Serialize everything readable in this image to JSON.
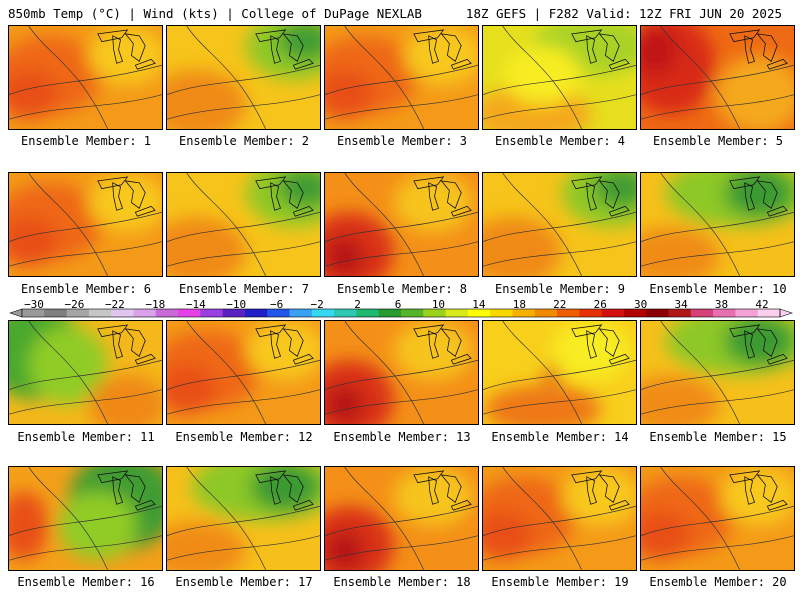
{
  "header": {
    "left": "850mb Temp (°C) | Wind (kts) | College of DuPage NEXLAB",
    "right": "18Z GEFS | F282 Valid: 12Z FRI JUN 20 2025"
  },
  "members": [
    {
      "caption": "Ensemble Member: 1",
      "theme": "warm"
    },
    {
      "caption": "Ensemble Member: 2",
      "theme": "mixed-green-ne"
    },
    {
      "caption": "Ensemble Member: 3",
      "theme": "warm"
    },
    {
      "caption": "Ensemble Member: 4",
      "theme": "yellow-green"
    },
    {
      "caption": "Ensemble Member: 5",
      "theme": "hot"
    },
    {
      "caption": "Ensemble Member: 6",
      "theme": "warm"
    },
    {
      "caption": "Ensemble Member: 7",
      "theme": "mixed-green-ne"
    },
    {
      "caption": "Ensemble Member: 8",
      "theme": "warm-hot-sw"
    },
    {
      "caption": "Ensemble Member: 9",
      "theme": "mixed-green-ne"
    },
    {
      "caption": "Ensemble Member: 10",
      "theme": "green-north"
    },
    {
      "caption": "Ensemble Member: 11",
      "theme": "green-west"
    },
    {
      "caption": "Ensemble Member: 12",
      "theme": "warm"
    },
    {
      "caption": "Ensemble Member: 13",
      "theme": "warm-hot-sw"
    },
    {
      "caption": "Ensemble Member: 14",
      "theme": "yellow-warm"
    },
    {
      "caption": "Ensemble Member: 15",
      "theme": "green-north"
    },
    {
      "caption": "Ensemble Member: 16",
      "theme": "green-east"
    },
    {
      "caption": "Ensemble Member: 17",
      "theme": "green-north"
    },
    {
      "caption": "Ensemble Member: 18",
      "theme": "warm-hot-sw"
    },
    {
      "caption": "Ensemble Member: 19",
      "theme": "warm"
    },
    {
      "caption": "Ensemble Member: 20",
      "theme": "warm"
    }
  ],
  "colorbar": {
    "labels": [
      "−30",
      "−26",
      "−22",
      "−18",
      "−14",
      "−10",
      "−6",
      "−2",
      "2",
      "6",
      "10",
      "14",
      "18",
      "22",
      "26",
      "30",
      "34",
      "38",
      "42"
    ],
    "colors": [
      "#9a9a9a",
      "#7f7f7f",
      "#a5a5a5",
      "#c6c6c6",
      "#e1c6f0",
      "#d9a2e9",
      "#c96ad9",
      "#e641e6",
      "#9a3fe0",
      "#5a22c0",
      "#2020c8",
      "#2256e8",
      "#3aa0f2",
      "#37d8f2",
      "#2ec8b2",
      "#1fb870",
      "#279a32",
      "#56b42a",
      "#9ad21e",
      "#d8ea1e",
      "#ffff00",
      "#f6d800",
      "#f4b100",
      "#f08a00",
      "#ee5e00",
      "#e63200",
      "#d41010",
      "#b00000",
      "#8c0000",
      "#b01818",
      "#d64078",
      "#e870b0",
      "#f2a2d6",
      "#fad0ec"
    ]
  }
}
